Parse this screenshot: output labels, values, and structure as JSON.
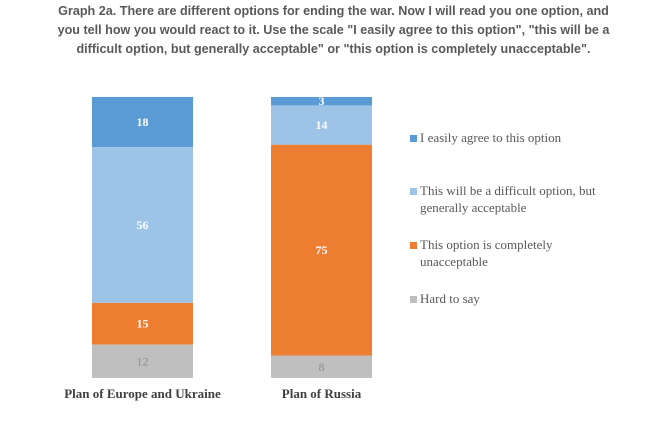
{
  "chart_data": {
    "type": "bar",
    "stacked": true,
    "percent": true,
    "title_lines": [
      "Graph 2a. There are different options for ending the war. Now I will read you one option, and",
      "you tell how you would react to it. Use the scale \"I easily agree to this option\", \"this will be a",
      "difficult option, but generally acceptable\" or \"this option is completely unacceptable\"."
    ],
    "categories": [
      "Plan of Europe and Ukraine",
      "Plan of Russia"
    ],
    "series": [
      {
        "name": "I easily agree to this option",
        "values": [
          18,
          3
        ],
        "color": "#5b9bd5",
        "label_color": "#ffffff"
      },
      {
        "name": "This will be a difficult option, but generally acceptable",
        "legend_lines": [
          "This will be a difficult option, but",
          "generally acceptable"
        ],
        "values": [
          56,
          14
        ],
        "color": "#9dc3e6",
        "label_color": "#ffffff"
      },
      {
        "name": "This option is completely unacceptable",
        "legend_lines": [
          "This option is completely",
          "unacceptable"
        ],
        "values": [
          15,
          75
        ],
        "color": "#ed7d31",
        "label_color": "#ffffff"
      },
      {
        "name": "Hard to say",
        "values": [
          12,
          8
        ],
        "color": "#bfbfbf",
        "label_color": "#8c8c8c"
      }
    ],
    "ylim": [
      0,
      100
    ],
    "legend_position": "right",
    "grid": false
  }
}
